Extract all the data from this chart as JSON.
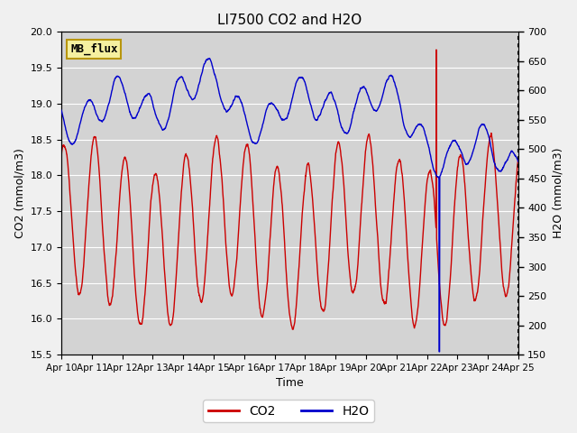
{
  "title": "LI7500 CO2 and H2O",
  "xlabel": "Time",
  "ylabel_left": "CO2 (mmol/m3)",
  "ylabel_right": "H2O (mmol/m3)",
  "co2_color": "#cc0000",
  "h2o_color": "#0000cc",
  "ylim_left": [
    15.5,
    20.0
  ],
  "ylim_right": [
    150,
    700
  ],
  "yticks_left": [
    15.5,
    16.0,
    16.5,
    17.0,
    17.5,
    18.0,
    18.5,
    19.0,
    19.5,
    20.0
  ],
  "yticks_right": [
    150,
    200,
    250,
    300,
    350,
    400,
    450,
    500,
    550,
    600,
    650,
    700
  ],
  "xtick_labels": [
    "Apr 10",
    "Apr 11",
    "Apr 12",
    "Apr 13",
    "Apr 14",
    "Apr 15",
    "Apr 16",
    "Apr 17",
    "Apr 18",
    "Apr 19",
    "Apr 20",
    "Apr 21",
    "Apr 22",
    "Apr 23",
    "Apr 24",
    "Apr 25"
  ],
  "legend_labels": [
    "CO2",
    "H2O"
  ],
  "watermark_text": "MB_flux",
  "line_width": 1.0,
  "title_fontsize": 11
}
